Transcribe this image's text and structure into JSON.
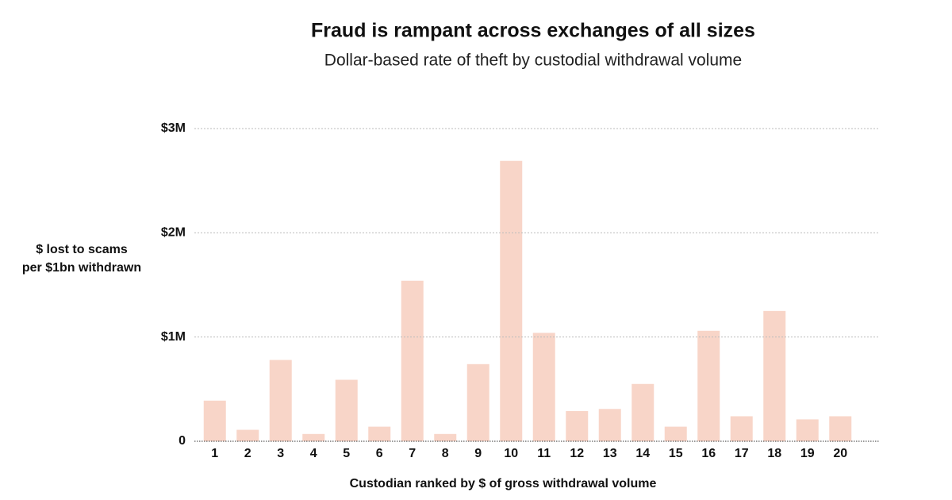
{
  "chart_data": {
    "type": "bar",
    "title": "Fraud is rampant across exchanges of all sizes",
    "subtitle": "Dollar-based rate of theft by custodial withdrawal volume",
    "y_label": [
      "$ lost to scams",
      "per $1bn withdrawn"
    ],
    "x_label": "Custodian ranked by $ of gross withdrawal volume",
    "categories": [
      "1",
      "2",
      "3",
      "4",
      "5",
      "6",
      "7",
      "8",
      "9",
      "10",
      "11",
      "12",
      "13",
      "14",
      "15",
      "16",
      "17",
      "18",
      "19",
      "20"
    ],
    "values": [
      390000,
      110000,
      780000,
      70000,
      590000,
      140000,
      1540000,
      70000,
      740000,
      2690000,
      1040000,
      290000,
      310000,
      550000,
      140000,
      1060000,
      240000,
      1250000,
      210000,
      240000
    ],
    "color": "#f8d5c8",
    "ylim": [
      0,
      3000000
    ],
    "yticks": [
      0,
      {
        "value": 1000000,
        "label": "$1M"
      },
      {
        "value": 2000000,
        "label": "$2M"
      },
      {
        "value": 3000000,
        "label": "$3M"
      }
    ],
    "grid": true
  }
}
